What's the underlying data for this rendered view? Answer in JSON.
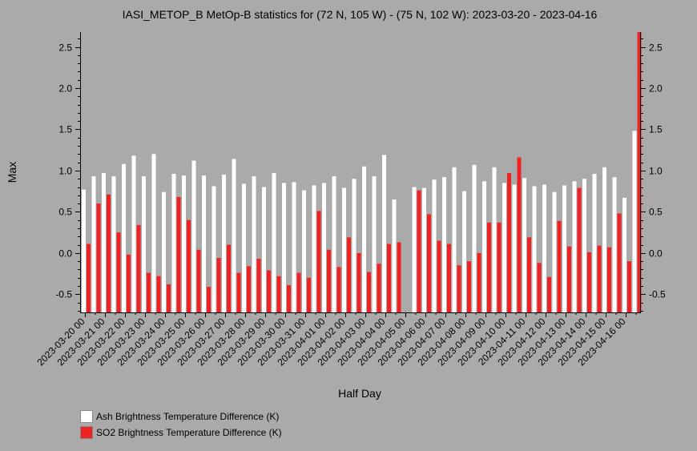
{
  "chart_data": {
    "type": "bar",
    "title": "IASI_METOP_B MetOp-B statistics for (72 N, 105 W) - (75 N, 102 W): 2023-03-20 - 2023-04-16",
    "xlabel": "Half Day",
    "ylabel": "Max",
    "ylim": [
      -0.72,
      2.68
    ],
    "yticks": [
      -0.5,
      0.0,
      0.5,
      1.0,
      1.5,
      2.0,
      2.5
    ],
    "ytick_labels": [
      "-0.5",
      "0.0",
      "0.5",
      "1.0",
      "1.5",
      "2.0",
      "2.5"
    ],
    "grid": false,
    "legend_position": "bottom-left",
    "x_tick_labels": [
      "2023-03-20 00",
      "2023-03-21 00",
      "2023-03-22 00",
      "2023-03-23 00",
      "2023-03-24 00",
      "2023-03-25 00",
      "2023-03-26 00",
      "2023-03-27 00",
      "2023-03-28 00",
      "2023-03-29 00",
      "2023-03-30 00",
      "2023-03-31 00",
      "2023-04-01 00",
      "2023-04-02 00",
      "2023-04-03 00",
      "2023-04-04 00",
      "2023-04-05 00",
      "2023-04-06 00",
      "2023-04-07 00",
      "2023-04-08 00",
      "2023-04-09 00",
      "2023-04-10 00",
      "2023-04-11 00",
      "2023-04-12 00",
      "2023-04-13 00",
      "2023-04-14 00",
      "2023-04-15 00",
      "2023-04-16 00"
    ],
    "series": [
      {
        "name": "Ash Brightness Temperature Difference (K)",
        "color": "#ffffff",
        "values": [
          0.77,
          0.93,
          0.97,
          0.93,
          1.08,
          1.18,
          0.93,
          1.2,
          0.74,
          0.96,
          0.94,
          1.12,
          0.94,
          0.81,
          0.95,
          1.14,
          0.84,
          0.93,
          0.8,
          0.97,
          0.85,
          0.86,
          0.76,
          0.82,
          0.85,
          0.93,
          0.79,
          0.9,
          1.05,
          0.93,
          1.19,
          0.65,
          null,
          0.8,
          0.79,
          0.89,
          0.92,
          1.04,
          0.75,
          1.07,
          0.87,
          1.04,
          0.85,
          0.83,
          0.91,
          0.81,
          0.83,
          0.74,
          0.82,
          0.87,
          0.9,
          0.96,
          1.04,
          0.92,
          0.67,
          1.48
        ]
      },
      {
        "name": "SO2 Brightness Temperature Difference (K)",
        "color": "#ee2222",
        "values": [
          0.11,
          0.6,
          0.71,
          0.25,
          -0.02,
          0.34,
          -0.24,
          -0.28,
          -0.38,
          0.68,
          0.4,
          0.04,
          -0.41,
          -0.06,
          0.1,
          -0.24,
          -0.16,
          -0.07,
          -0.21,
          -0.28,
          -0.39,
          -0.24,
          -0.3,
          0.51,
          0.04,
          -0.17,
          0.19,
          0.0,
          -0.23,
          -0.13,
          0.11,
          0.13,
          null,
          0.76,
          0.47,
          0.15,
          0.11,
          -0.15,
          -0.1,
          0.0,
          0.37,
          0.37,
          0.97,
          1.16,
          0.19,
          -0.12,
          -0.29,
          0.39,
          0.08,
          0.79,
          0.01,
          0.09,
          0.07,
          0.48,
          -0.1,
          2.7
        ]
      }
    ]
  }
}
